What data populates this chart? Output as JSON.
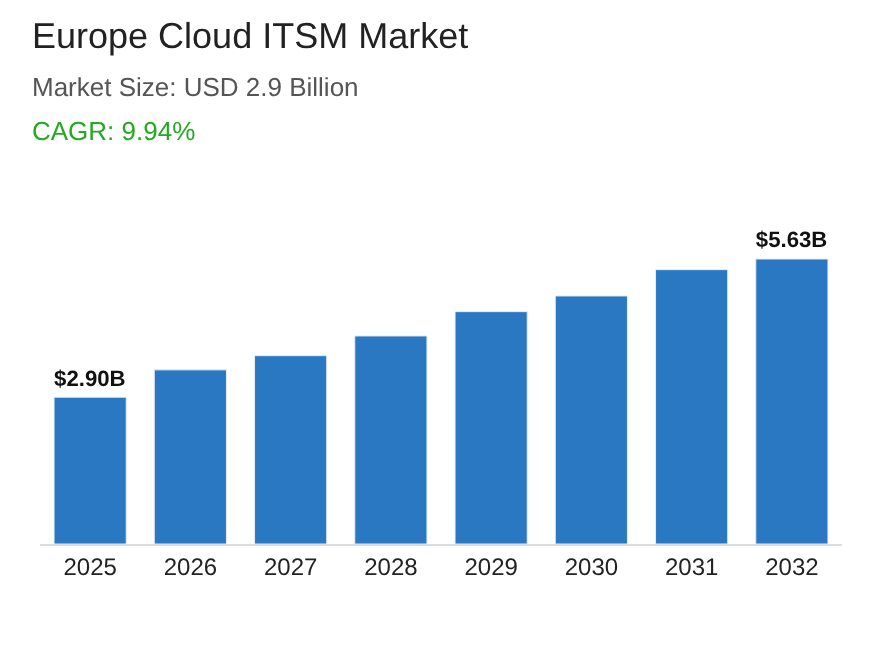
{
  "chart_data": {
    "type": "bar",
    "title": "Europe Cloud ITSM Market",
    "subtitle": "Market Size: USD 2.9 Billion",
    "annotations": [
      "CAGR: 9.94%"
    ],
    "categories": [
      "2025",
      "2026",
      "2027",
      "2028",
      "2029",
      "2030",
      "2031",
      "2032"
    ],
    "values": [
      2.9,
      3.44,
      3.72,
      4.11,
      4.59,
      4.9,
      5.42,
      5.63
    ],
    "value_labels": [
      "$2.90B",
      null,
      null,
      null,
      null,
      null,
      null,
      "$5.63B"
    ],
    "color": "#2b78c2",
    "legend": false
  }
}
